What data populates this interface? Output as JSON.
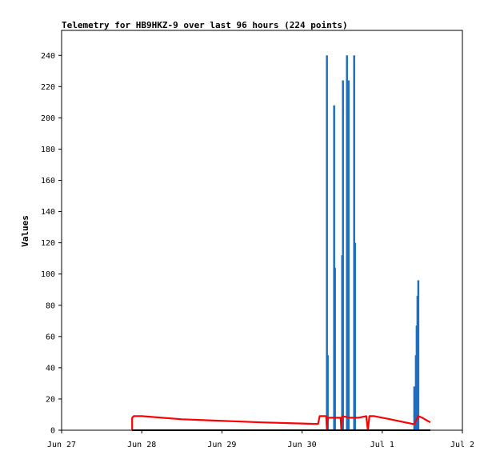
{
  "chart_data": {
    "type": "line",
    "title": "Telemetry for HB9HKZ-9 over last 96 hours (224 points)",
    "xlabel": "",
    "ylabel": "Values",
    "xlim": [
      0,
      5
    ],
    "ylim": [
      0,
      256
    ],
    "x_ticks": [
      {
        "value": 0,
        "label": "Jun 27"
      },
      {
        "value": 1,
        "label": "Jun 28"
      },
      {
        "value": 2,
        "label": "Jun 29"
      },
      {
        "value": 3,
        "label": "Jun 30"
      },
      {
        "value": 4,
        "label": "Jul 1"
      },
      {
        "value": 5,
        "label": "Jul 2"
      }
    ],
    "y_ticks": [
      0,
      20,
      40,
      60,
      80,
      100,
      120,
      140,
      160,
      180,
      200,
      220,
      240
    ],
    "grid": false,
    "series": [
      {
        "color": "#1f6fbf",
        "style": "spikes",
        "points": [
          [
            3.31,
            240
          ],
          [
            3.32,
            48
          ],
          [
            3.4,
            208
          ],
          [
            3.41,
            104
          ],
          [
            3.5,
            112
          ],
          [
            3.51,
            224
          ],
          [
            3.56,
            240
          ],
          [
            3.58,
            224
          ],
          [
            3.65,
            240
          ],
          [
            3.66,
            120
          ],
          [
            4.4,
            28
          ],
          [
            4.42,
            48
          ],
          [
            4.43,
            67
          ],
          [
            4.44,
            86
          ],
          [
            4.45,
            96
          ]
        ]
      },
      {
        "color": "#ff0000",
        "style": "line",
        "points": [
          [
            0.88,
            0
          ],
          [
            0.88,
            8
          ],
          [
            0.9,
            9
          ],
          [
            1.0,
            9
          ],
          [
            1.5,
            7
          ],
          [
            2.5,
            5
          ],
          [
            3.2,
            4
          ],
          [
            3.22,
            9
          ],
          [
            3.3,
            9
          ],
          [
            3.31,
            0
          ],
          [
            3.32,
            8
          ],
          [
            3.48,
            8
          ],
          [
            3.49,
            0
          ],
          [
            3.5,
            9
          ],
          [
            3.6,
            8
          ],
          [
            3.7,
            8
          ],
          [
            3.8,
            9
          ],
          [
            3.82,
            0
          ],
          [
            3.84,
            9
          ],
          [
            3.9,
            9
          ],
          [
            4.1,
            7
          ],
          [
            4.38,
            4
          ],
          [
            4.4,
            4
          ],
          [
            4.45,
            9
          ],
          [
            4.5,
            8
          ],
          [
            4.6,
            5
          ]
        ]
      },
      {
        "color": "#000000",
        "style": "line",
        "points": [
          [
            0.88,
            0
          ],
          [
            4.6,
            0
          ]
        ]
      }
    ]
  }
}
